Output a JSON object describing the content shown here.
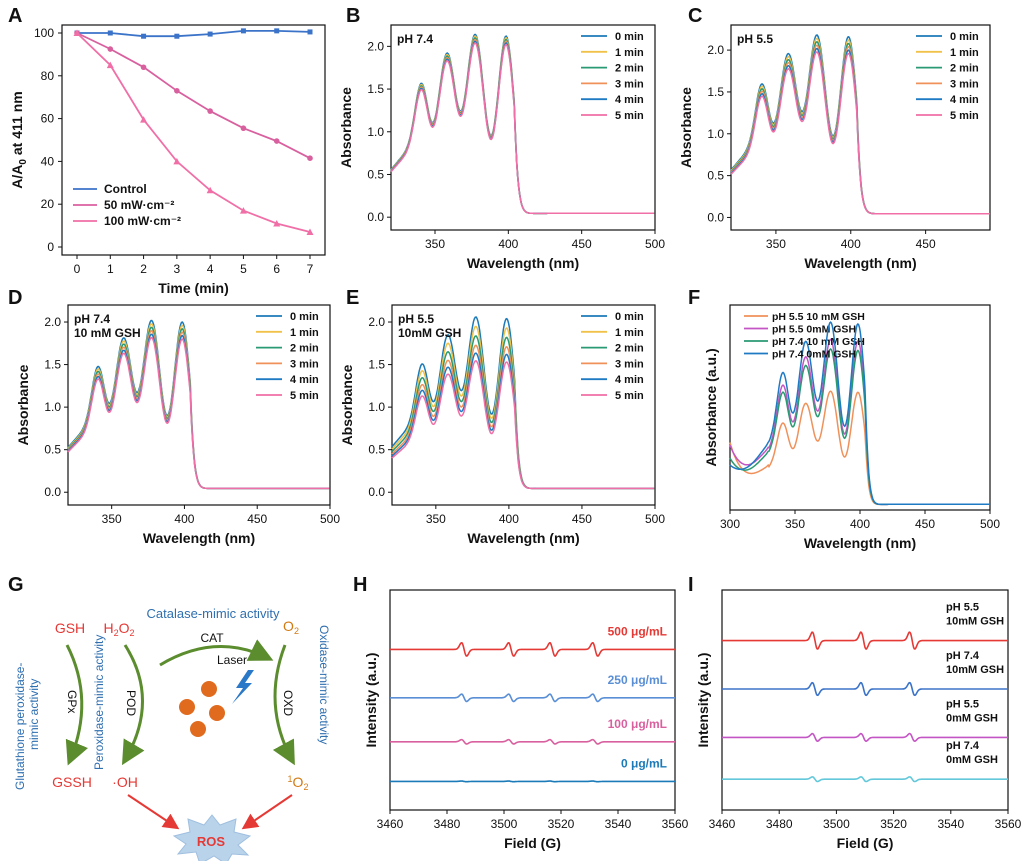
{
  "colors": {
    "blue": "#3b73c9",
    "pink": "#d9609f",
    "lpink": "#f06fa7",
    "yellow": "#f0c24a",
    "orange": "#f0915a",
    "green": "#2a9a73",
    "dblue": "#1b7ab8",
    "red": "#e53935",
    "violet": "#c455c4",
    "lblue": "#5a8fd6",
    "cyan": "#62c8da",
    "olive": "#5b8c2e",
    "nblue": "#1f7ac4",
    "ros": "#b9d3ea",
    "ball": "#e06b1f"
  },
  "chart_data": [
    {
      "panel": "A",
      "type": "line",
      "xlabel": "Time (min)",
      "ylabel": "A/A0 at 411 nm",
      "xlim": [
        0,
        7
      ],
      "ylim": [
        0,
        100
      ],
      "xticks": [
        "0",
        "1",
        "2",
        "3",
        "4",
        "5",
        "6",
        "7"
      ],
      "yticks": [
        "0",
        "20",
        "40",
        "60",
        "80",
        "100"
      ],
      "legend_position": "bottom-left",
      "x": [
        0,
        1,
        2,
        3,
        4,
        5,
        6,
        7
      ],
      "series": [
        {
          "name": "Control",
          "values": [
            100,
            100,
            98.5,
            98.5,
            99.5,
            101,
            101,
            100.5
          ],
          "color": "blue"
        },
        {
          "name": "50 mW·cm⁻²",
          "values": [
            100,
            92.5,
            84,
            73,
            63.5,
            55.5,
            49.5,
            41.5
          ],
          "color": "pink"
        },
        {
          "name": "100 mW·cm⁻²",
          "values": [
            100,
            85,
            59.5,
            40,
            26.5,
            17,
            11,
            7
          ],
          "color": "lpink"
        }
      ]
    },
    {
      "panel": "B",
      "type": "line",
      "annotation": "pH 7.4",
      "xlabel": "Wavelength (nm)",
      "ylabel": "Absorbance",
      "xlim": [
        320,
        500
      ],
      "ylim": [
        -0.15,
        2.25
      ],
      "xticks": [
        "350",
        "400",
        "450",
        "500"
      ],
      "yticks": [
        "0.0",
        "0.5",
        "1.0",
        "1.5",
        "2.0"
      ],
      "legend_position": "top-right",
      "series": [
        {
          "name": "0 min",
          "peak": 2.12,
          "color": "dblue"
        },
        {
          "name": "1 min",
          "peak": 2.1,
          "color": "yellow"
        },
        {
          "name": "2 min",
          "peak": 2.08,
          "color": "green"
        },
        {
          "name": "3 min",
          "peak": 2.06,
          "color": "orange"
        },
        {
          "name": "4 min",
          "peak": 2.04,
          "color": "nblue"
        },
        {
          "name": "5 min",
          "peak": 2.02,
          "color": "lpink"
        }
      ]
    },
    {
      "panel": "C",
      "type": "line",
      "annotation": "pH 5.5",
      "xlabel": "Wavelength (nm)",
      "ylabel": "Absorbance",
      "xlim": [
        320,
        493
      ],
      "ylim": [
        -0.15,
        2.3
      ],
      "xticks": [
        "350",
        "400",
        "450"
      ],
      "yticks": [
        "0.0",
        "0.5",
        "1.0",
        "1.5",
        "2.0"
      ],
      "legend_position": "top-right",
      "series": [
        {
          "name": "0 min",
          "peak": 2.16,
          "color": "dblue"
        },
        {
          "name": "1 min",
          "peak": 2.12,
          "color": "yellow"
        },
        {
          "name": "2 min",
          "peak": 2.08,
          "color": "green"
        },
        {
          "name": "3 min",
          "peak": 2.04,
          "color": "orange"
        },
        {
          "name": "4 min",
          "peak": 2.0,
          "color": "nblue"
        },
        {
          "name": "5 min",
          "peak": 1.96,
          "color": "lpink"
        }
      ]
    },
    {
      "panel": "D",
      "type": "line",
      "annotation": "pH 7.4",
      "annotation2": "10 mM GSH",
      "xlabel": "Wavelength (nm)",
      "ylabel": "Absorbance",
      "xlim": [
        320,
        500
      ],
      "ylim": [
        -0.15,
        2.2
      ],
      "xticks": [
        "350",
        "400",
        "450",
        "500"
      ],
      "yticks": [
        "0.0",
        "0.5",
        "1.0",
        "1.5",
        "2.0"
      ],
      "legend_position": "top-right",
      "series": [
        {
          "name": "0 min",
          "peak": 2.0,
          "color": "dblue"
        },
        {
          "name": "1 min",
          "peak": 1.96,
          "color": "yellow"
        },
        {
          "name": "2 min",
          "peak": 1.92,
          "color": "green"
        },
        {
          "name": "3 min",
          "peak": 1.88,
          "color": "orange"
        },
        {
          "name": "4 min",
          "peak": 1.84,
          "color": "nblue"
        },
        {
          "name": "5 min",
          "peak": 1.8,
          "color": "lpink"
        }
      ]
    },
    {
      "panel": "E",
      "type": "line",
      "annotation": "pH 5.5",
      "annotation2": "10mM GSH",
      "xlabel": "Wavelength (nm)",
      "ylabel": "Absorbance",
      "xlim": [
        320,
        500
      ],
      "ylim": [
        -0.15,
        2.2
      ],
      "xticks": [
        "350",
        "400",
        "450",
        "500"
      ],
      "yticks": [
        "0.0",
        "0.5",
        "1.0",
        "1.5",
        "2.0"
      ],
      "legend_position": "top-right",
      "series": [
        {
          "name": "0 min",
          "peak": 2.04,
          "color": "dblue"
        },
        {
          "name": "1 min",
          "peak": 1.93,
          "color": "yellow"
        },
        {
          "name": "2 min",
          "peak": 1.82,
          "color": "green"
        },
        {
          "name": "3 min",
          "peak": 1.71,
          "color": "orange"
        },
        {
          "name": "4 min",
          "peak": 1.62,
          "color": "nblue"
        },
        {
          "name": "5 min",
          "peak": 1.53,
          "color": "lpink"
        }
      ]
    },
    {
      "panel": "F",
      "type": "line",
      "xlabel": "Wavelength (nm)",
      "ylabel": "Absorbance (a.u.)",
      "xlim": [
        300,
        500
      ],
      "ylim": [
        0,
        1.08
      ],
      "xticks": [
        "300",
        "350",
        "400",
        "450",
        "500"
      ],
      "yticks": [],
      "legend_position": "top-left",
      "series": [
        {
          "name": "pH 5.5  10 mM GSH",
          "peak": 0.62,
          "base": 0.03,
          "color": "orange"
        },
        {
          "name": "pH 5.5   0mM GSH",
          "peak": 0.89,
          "base": 0.03,
          "color": "violet"
        },
        {
          "name": "pH 7.4  10 mM GSH",
          "peak": 0.84,
          "base": 0.03,
          "color": "green"
        },
        {
          "name": "pH 7.4    0mM GSH",
          "peak": 0.98,
          "base": 0.03,
          "color": "nblue"
        }
      ]
    },
    {
      "panel": "H",
      "type": "line",
      "xlabel": "Field (G)",
      "ylabel": "Intensity (a.u.)",
      "xlim": [
        3460,
        3560
      ],
      "xticks": [
        "3460",
        "3480",
        "3500",
        "3520",
        "3540",
        "3560"
      ],
      "yticks": [],
      "legend_position": "inline-right",
      "line_positions": [
        3486,
        3502.5,
        3517,
        3532
      ],
      "series": [
        {
          "name": "500 μg/mL",
          "amp": 1.0,
          "offset": 3,
          "color": "red"
        },
        {
          "name": "250 μg/mL",
          "amp": 0.55,
          "offset": 2,
          "color": "lblue"
        },
        {
          "name": "100 μg/mL",
          "amp": 0.32,
          "offset": 1,
          "color": "pink"
        },
        {
          "name": "0 μg/mL",
          "amp": 0.05,
          "offset": 0,
          "color": "dblue"
        }
      ]
    },
    {
      "panel": "I",
      "type": "line",
      "xlabel": "Field (G)",
      "ylabel": "Intensity (a.u.)",
      "xlim": [
        3460,
        3560
      ],
      "xticks": [
        "3460",
        "3480",
        "3500",
        "3520",
        "3540",
        "3560"
      ],
      "yticks": [],
      "legend_position": "inline-right",
      "line_positions": [
        3492.5,
        3509.5,
        3526.5
      ],
      "series": [
        {
          "name": "pH 5.5",
          "name2": "10mM GSH",
          "amp": 1.0,
          "offset": 3,
          "color": "red"
        },
        {
          "name": "pH 7.4",
          "name2": "10mM GSH",
          "amp": 0.75,
          "offset": 2,
          "color": "blue"
        },
        {
          "name": "pH 5.5",
          "name2": "0mM GSH",
          "amp": 0.45,
          "offset": 1,
          "color": "violet"
        },
        {
          "name": "pH 7.4",
          "name2": "0mM GSH",
          "amp": 0.28,
          "offset": 0,
          "color": "cyan"
        }
      ]
    }
  ],
  "panel_g": {
    "label": "G",
    "catalase": "Catalase-mimic activity",
    "cat": "CAT",
    "laser": "Laser",
    "gsh": "GSH",
    "h2o2": "H",
    "h2o2_sub": "2",
    "h2o2_o": "O",
    "h2o2_sub2": "2",
    "o2": "O",
    "o2_sub": "2",
    "gpx": "GPx",
    "pod": "POD",
    "oxd": "OXD",
    "glut1": "Glutathione peroxidase-",
    "glut2": "mimic activity",
    "perox": "Peroxidase-mimic activity",
    "oxid": "Oxidase-mimic activity",
    "gssh": "GSSH",
    "oh": "·OH",
    "singlet_sup": "1",
    "singlet_o": "O",
    "singlet_sub": "2",
    "ros": "ROS"
  }
}
